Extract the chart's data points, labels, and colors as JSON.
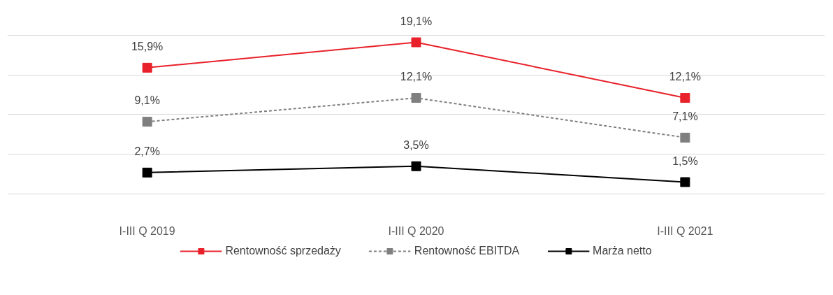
{
  "chart_data": {
    "type": "line",
    "categories": [
      "I-III Q 2019",
      "I-III Q 2020",
      "I-III Q 2021"
    ],
    "series": [
      {
        "name": "Rentowność sprzedaży",
        "color": "#e8212a",
        "values": [
          15.9,
          19.1,
          12.1
        ],
        "value_labels": [
          "15,9%",
          "19,1%",
          "12,1%"
        ],
        "line_style": "solid"
      },
      {
        "name": "Rentowność EBITDA",
        "color": "#7f7f7f",
        "values": [
          9.1,
          12.1,
          7.1
        ],
        "value_labels": [
          "9,1%",
          "12,1%",
          "7,1%"
        ],
        "line_style": "dashed"
      },
      {
        "name": "Marża netto",
        "color": "#000000",
        "values": [
          2.7,
          3.5,
          1.5
        ],
        "value_labels": [
          "2,7%",
          "3,5%",
          "1,5%"
        ],
        "line_style": "solid"
      }
    ],
    "grid": "y",
    "tick_labels": "x",
    "legend": "bottom",
    "marker": "square"
  }
}
